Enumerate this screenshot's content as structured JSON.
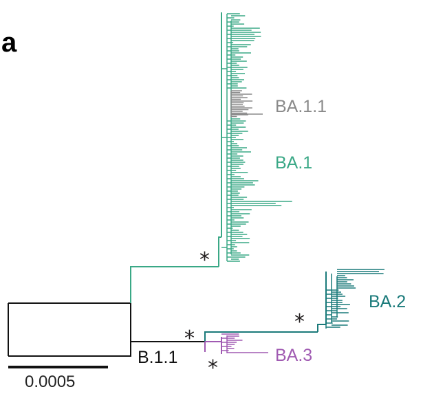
{
  "panel_letter": "a",
  "scale_bar_label": "0.0005",
  "colors": {
    "root": "#111111",
    "ba1": "#3aa886",
    "ba11": "#8a8a8a",
    "ba2": "#1a7a7a",
    "ba3": "#a05ab2",
    "star": "#231f20"
  },
  "clades": [
    {
      "id": "ba11",
      "label": "BA.1.1",
      "color": "#8a8a8a"
    },
    {
      "id": "ba1",
      "label": "BA.1",
      "color": "#3aa886"
    },
    {
      "id": "ba2",
      "label": "BA.2",
      "color": "#1a7a7a"
    },
    {
      "id": "ba3",
      "label": "BA.3",
      "color": "#a05ab2"
    },
    {
      "id": "b11",
      "label": "B.1.1",
      "color": "#111111"
    }
  ],
  "support_markers": [
    "*",
    "*",
    "*",
    "*"
  ]
}
